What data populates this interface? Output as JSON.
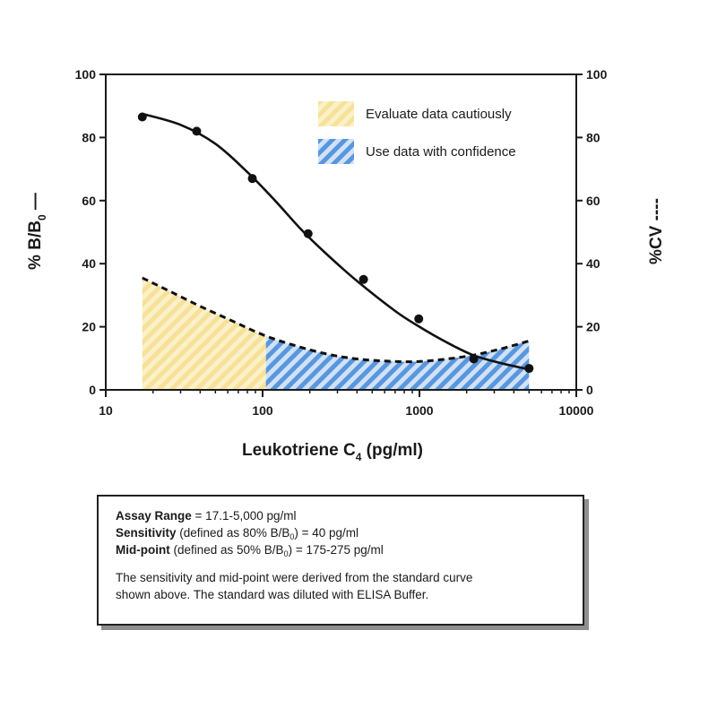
{
  "chart_data": {
    "type": "line",
    "xlabel_main": "Leukotriene C",
    "xlabel_sub": "4",
    "xlabel_tail": " (pg/ml)",
    "ylabel_left_main": "% B/B",
    "ylabel_left_sub": "0",
    "ylabel_left_tail": " —",
    "ylabel_right": "%CV ----",
    "x_scale": "log",
    "xlim": [
      10,
      10000
    ],
    "ylim": [
      0,
      100
    ],
    "y2lim": [
      0,
      100
    ],
    "x_ticks": [
      "10",
      "100",
      "1000",
      "10000"
    ],
    "y_ticks": [
      "0",
      "20",
      "40",
      "60",
      "80",
      "100"
    ],
    "y2_ticks": [
      "0",
      "20",
      "40",
      "60",
      "80",
      "100"
    ],
    "grid": false,
    "legend_position": "top-right",
    "series": [
      {
        "name": "% B/B0",
        "style": "solid-line-with-points",
        "color": "#111111",
        "points": [
          {
            "x": 17.1,
            "y": 86.5
          },
          {
            "x": 38,
            "y": 82
          },
          {
            "x": 86,
            "y": 67
          },
          {
            "x": 195,
            "y": 49.5
          },
          {
            "x": 440,
            "y": 35
          },
          {
            "x": 990,
            "y": 22.5
          },
          {
            "x": 2220,
            "y": 9.8
          },
          {
            "x": 5000,
            "y": 6.8
          }
        ],
        "curve": [
          {
            "x": 17.1,
            "y": 87.5
          },
          {
            "x": 30,
            "y": 84
          },
          {
            "x": 50,
            "y": 78
          },
          {
            "x": 80,
            "y": 69
          },
          {
            "x": 120,
            "y": 60
          },
          {
            "x": 175,
            "y": 51
          },
          {
            "x": 250,
            "y": 43.5
          },
          {
            "x": 400,
            "y": 34.5
          },
          {
            "x": 700,
            "y": 25
          },
          {
            "x": 1000,
            "y": 20
          },
          {
            "x": 1500,
            "y": 15
          },
          {
            "x": 2200,
            "y": 11
          },
          {
            "x": 3300,
            "y": 8.5
          },
          {
            "x": 5000,
            "y": 6.5
          }
        ]
      },
      {
        "name": "%CV",
        "style": "dashed-line",
        "color": "#111111",
        "axis": "right",
        "curve": [
          {
            "x": 17.1,
            "y": 35.5
          },
          {
            "x": 25,
            "y": 31.5
          },
          {
            "x": 40,
            "y": 26.5
          },
          {
            "x": 60,
            "y": 22.5
          },
          {
            "x": 100,
            "y": 17.5
          },
          {
            "x": 150,
            "y": 14.5
          },
          {
            "x": 250,
            "y": 11.5
          },
          {
            "x": 400,
            "y": 9.8
          },
          {
            "x": 700,
            "y": 9
          },
          {
            "x": 1000,
            "y": 9
          },
          {
            "x": 1500,
            "y": 9.8
          },
          {
            "x": 2200,
            "y": 11
          },
          {
            "x": 3300,
            "y": 13
          },
          {
            "x": 5000,
            "y": 15.5
          }
        ]
      }
    ],
    "regions": [
      {
        "label": "Evaluate data cautiously",
        "x_from": 17.1,
        "x_to": 105,
        "color": "#f7e19a",
        "stripe_color": "#fbf1c8"
      },
      {
        "label": "Use data with confidence",
        "x_from": 105,
        "x_to": 5000,
        "color": "#5a96dc",
        "stripe_color": "#cfe2f8"
      }
    ],
    "legend": [
      {
        "label": "Evaluate data cautiously",
        "color": "#f7e19a",
        "stripe_color": "#fbf1c8"
      },
      {
        "label": "Use data with confidence",
        "color": "#5a96dc",
        "stripe_color": "#cfe2f8"
      }
    ]
  },
  "info_box": {
    "assay_range_label": "Assay Range",
    "assay_range_value": " = 17.1-5,000 pg/ml",
    "sensitivity_label": "Sensitivity",
    "sensitivity_pre": " (defined as 80% B/B",
    "sensitivity_sub": "0",
    "sensitivity_post": ") = 40 pg/ml",
    "midpoint_label": "Mid-point",
    "midpoint_pre": " (defined as 50% B/B",
    "midpoint_sub": "0",
    "midpoint_post": ") = 175-275 pg/ml",
    "note_line1": "The sensitivity and mid-point were derived from the standard curve",
    "note_line2": "shown above. The standard was diluted with ELISA Buffer."
  }
}
